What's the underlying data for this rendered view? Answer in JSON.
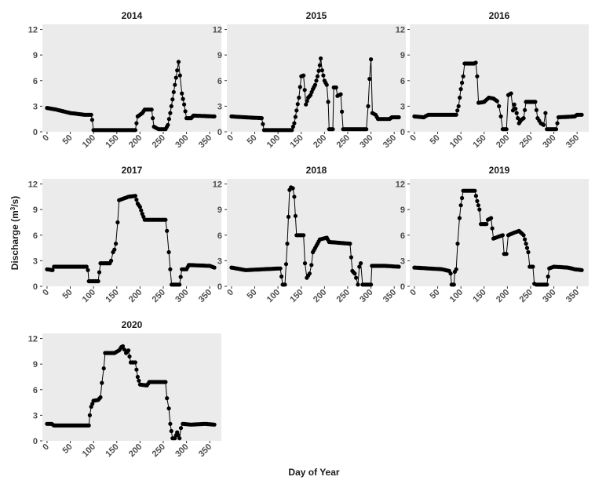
{
  "chart_data": {
    "type": "line",
    "xlabel": "Day of Year",
    "ylabel": "Discharge (m",
    "ylabel_sup": "3",
    "ylabel_end": "/s)",
    "xlim": [
      -10,
      375
    ],
    "ylim": [
      0,
      12.6
    ],
    "xticks": [
      0,
      50,
      100,
      150,
      200,
      250,
      300,
      350
    ],
    "yticks": [
      0,
      3,
      6,
      9,
      12
    ],
    "panels": [
      {
        "title": "2014",
        "points": [
          [
            0,
            2.8
          ],
          [
            20,
            2.6
          ],
          [
            50,
            2.2
          ],
          [
            80,
            2.0
          ],
          [
            95,
            2.0
          ],
          [
            97,
            1.4
          ],
          [
            100,
            0.2
          ],
          [
            150,
            0.2
          ],
          [
            190,
            0.2
          ],
          [
            195,
            1.8
          ],
          [
            205,
            2.2
          ],
          [
            210,
            2.6
          ],
          [
            225,
            2.6
          ],
          [
            230,
            0.6
          ],
          [
            240,
            0.3
          ],
          [
            255,
            0.3
          ],
          [
            260,
            0.8
          ],
          [
            265,
            2.2
          ],
          [
            270,
            3.8
          ],
          [
            275,
            5.5
          ],
          [
            280,
            7.2
          ],
          [
            283,
            8.2
          ],
          [
            286,
            6.6
          ],
          [
            290,
            4.5
          ],
          [
            295,
            3.2
          ],
          [
            300,
            1.6
          ],
          [
            310,
            1.6
          ],
          [
            315,
            1.9
          ],
          [
            360,
            1.8
          ]
        ]
      },
      {
        "title": "2015",
        "points": [
          [
            0,
            1.8
          ],
          [
            30,
            1.7
          ],
          [
            65,
            1.6
          ],
          [
            70,
            0.2
          ],
          [
            130,
            0.2
          ],
          [
            135,
            1.0
          ],
          [
            140,
            2.5
          ],
          [
            145,
            4.0
          ],
          [
            150,
            6.5
          ],
          [
            155,
            6.6
          ],
          [
            160,
            3.2
          ],
          [
            165,
            4.0
          ],
          [
            170,
            4.3
          ],
          [
            175,
            5.0
          ],
          [
            180,
            5.5
          ],
          [
            185,
            6.5
          ],
          [
            190,
            7.8
          ],
          [
            192,
            8.6
          ],
          [
            195,
            7.2
          ],
          [
            200,
            6.0
          ],
          [
            205,
            5.5
          ],
          [
            208,
            3.5
          ],
          [
            210,
            0.3
          ],
          [
            218,
            0.3
          ],
          [
            220,
            5.2
          ],
          [
            225,
            5.2
          ],
          [
            228,
            4.2
          ],
          [
            235,
            4.4
          ],
          [
            240,
            0.3
          ],
          [
            290,
            0.3
          ],
          [
            294,
            3.0
          ],
          [
            297,
            6.2
          ],
          [
            300,
            8.5
          ],
          [
            303,
            2.2
          ],
          [
            310,
            2.0
          ],
          [
            315,
            1.5
          ],
          [
            340,
            1.5
          ],
          [
            345,
            1.7
          ],
          [
            360,
            1.7
          ]
        ]
      },
      {
        "title": "2016",
        "points": [
          [
            0,
            1.8
          ],
          [
            20,
            1.7
          ],
          [
            30,
            2.0
          ],
          [
            90,
            2.0
          ],
          [
            95,
            3.0
          ],
          [
            100,
            5.0
          ],
          [
            105,
            6.5
          ],
          [
            108,
            8.0
          ],
          [
            128,
            8.0
          ],
          [
            132,
            8.1
          ],
          [
            135,
            6.5
          ],
          [
            138,
            3.4
          ],
          [
            150,
            3.5
          ],
          [
            160,
            4.0
          ],
          [
            170,
            3.9
          ],
          [
            178,
            3.6
          ],
          [
            182,
            3.0
          ],
          [
            186,
            1.8
          ],
          [
            190,
            0.3
          ],
          [
            198,
            0.3
          ],
          [
            202,
            4.3
          ],
          [
            208,
            4.5
          ],
          [
            212,
            2.5
          ],
          [
            215,
            3.2
          ],
          [
            220,
            2.2
          ],
          [
            225,
            1.0
          ],
          [
            230,
            1.4
          ],
          [
            235,
            1.6
          ],
          [
            240,
            3.5
          ],
          [
            260,
            3.5
          ],
          [
            265,
            1.6
          ],
          [
            272,
            1.0
          ],
          [
            278,
            0.8
          ],
          [
            282,
            2.2
          ],
          [
            285,
            0.3
          ],
          [
            305,
            0.3
          ],
          [
            310,
            1.7
          ],
          [
            345,
            1.8
          ],
          [
            350,
            2.0
          ],
          [
            360,
            2.0
          ]
        ]
      },
      {
        "title": "2017",
        "points": [
          [
            0,
            2.0
          ],
          [
            12,
            1.9
          ],
          [
            15,
            2.3
          ],
          [
            85,
            2.3
          ],
          [
            88,
            1.9
          ],
          [
            90,
            0.6
          ],
          [
            110,
            0.6
          ],
          [
            115,
            2.7
          ],
          [
            135,
            2.7
          ],
          [
            138,
            3.0
          ],
          [
            142,
            4.0
          ],
          [
            145,
            4.3
          ],
          [
            148,
            5.0
          ],
          [
            152,
            7.5
          ],
          [
            155,
            10.1
          ],
          [
            165,
            10.3
          ],
          [
            175,
            10.5
          ],
          [
            190,
            10.6
          ],
          [
            195,
            9.7
          ],
          [
            200,
            9.3
          ],
          [
            205,
            8.5
          ],
          [
            210,
            7.8
          ],
          [
            255,
            7.8
          ],
          [
            258,
            6.5
          ],
          [
            262,
            4.0
          ],
          [
            265,
            2.0
          ],
          [
            268,
            0.2
          ],
          [
            285,
            0.2
          ],
          [
            290,
            2.0
          ],
          [
            300,
            2.0
          ],
          [
            305,
            2.5
          ],
          [
            350,
            2.4
          ],
          [
            360,
            2.2
          ]
        ]
      },
      {
        "title": "2018",
        "points": [
          [
            0,
            2.2
          ],
          [
            30,
            1.9
          ],
          [
            105,
            2.1
          ],
          [
            110,
            0.2
          ],
          [
            115,
            0.2
          ],
          [
            120,
            5.0
          ],
          [
            125,
            11.3
          ],
          [
            128,
            11.6
          ],
          [
            132,
            11.5
          ],
          [
            135,
            10.5
          ],
          [
            140,
            6.0
          ],
          [
            155,
            6.0
          ],
          [
            158,
            2.7
          ],
          [
            162,
            1.0
          ],
          [
            168,
            1.5
          ],
          [
            172,
            2.5
          ],
          [
            175,
            4.0
          ],
          [
            180,
            4.5
          ],
          [
            185,
            5.0
          ],
          [
            190,
            5.5
          ],
          [
            205,
            5.7
          ],
          [
            210,
            5.2
          ],
          [
            255,
            5.0
          ],
          [
            260,
            1.8
          ],
          [
            265,
            1.5
          ],
          [
            268,
            1.0
          ],
          [
            272,
            0.2
          ],
          [
            275,
            2.3
          ],
          [
            278,
            2.7
          ],
          [
            282,
            0.2
          ],
          [
            300,
            0.2
          ],
          [
            302,
            2.4
          ],
          [
            330,
            2.4
          ],
          [
            360,
            2.3
          ]
        ]
      },
      {
        "title": "2019",
        "points": [
          [
            0,
            2.2
          ],
          [
            30,
            2.1
          ],
          [
            60,
            2.0
          ],
          [
            75,
            1.8
          ],
          [
            78,
            1.5
          ],
          [
            80,
            0.2
          ],
          [
            85,
            0.2
          ],
          [
            87,
            1.7
          ],
          [
            90,
            2.0
          ],
          [
            93,
            5.0
          ],
          [
            97,
            8.0
          ],
          [
            100,
            9.5
          ],
          [
            105,
            11.2
          ],
          [
            130,
            11.2
          ],
          [
            135,
            10.0
          ],
          [
            140,
            9.0
          ],
          [
            143,
            7.3
          ],
          [
            155,
            7.3
          ],
          [
            158,
            7.8
          ],
          [
            165,
            8.0
          ],
          [
            170,
            5.6
          ],
          [
            180,
            5.8
          ],
          [
            190,
            6.0
          ],
          [
            193,
            3.8
          ],
          [
            198,
            3.8
          ],
          [
            202,
            6.0
          ],
          [
            215,
            6.3
          ],
          [
            225,
            6.5
          ],
          [
            235,
            6.0
          ],
          [
            240,
            5.0
          ],
          [
            245,
            4.0
          ],
          [
            248,
            2.3
          ],
          [
            255,
            2.3
          ],
          [
            258,
            0.3
          ],
          [
            262,
            0.2
          ],
          [
            285,
            0.2
          ],
          [
            290,
            2.1
          ],
          [
            300,
            2.3
          ],
          [
            330,
            2.2
          ],
          [
            345,
            2.0
          ],
          [
            360,
            1.9
          ]
        ]
      },
      {
        "title": "2020",
        "points": [
          [
            0,
            2.0
          ],
          [
            10,
            2.0
          ],
          [
            15,
            1.8
          ],
          [
            90,
            1.8
          ],
          [
            92,
            3.0
          ],
          [
            95,
            4.0
          ],
          [
            100,
            4.7
          ],
          [
            110,
            4.8
          ],
          [
            115,
            5.1
          ],
          [
            118,
            6.8
          ],
          [
            122,
            8.5
          ],
          [
            125,
            10.3
          ],
          [
            145,
            10.3
          ],
          [
            155,
            10.6
          ],
          [
            160,
            11.0
          ],
          [
            163,
            11.1
          ],
          [
            170,
            10.3
          ],
          [
            175,
            10.6
          ],
          [
            180,
            9.2
          ],
          [
            190,
            9.2
          ],
          [
            195,
            7.5
          ],
          [
            200,
            6.6
          ],
          [
            215,
            6.5
          ],
          [
            220,
            6.9
          ],
          [
            255,
            6.9
          ],
          [
            258,
            5.0
          ],
          [
            262,
            3.8
          ],
          [
            265,
            2.0
          ],
          [
            270,
            0.3
          ],
          [
            275,
            0.3
          ],
          [
            280,
            1.0
          ],
          [
            285,
            0.3
          ],
          [
            288,
            1.5
          ],
          [
            292,
            2.0
          ],
          [
            310,
            1.9
          ],
          [
            340,
            2.0
          ],
          [
            360,
            1.9
          ]
        ]
      }
    ]
  }
}
